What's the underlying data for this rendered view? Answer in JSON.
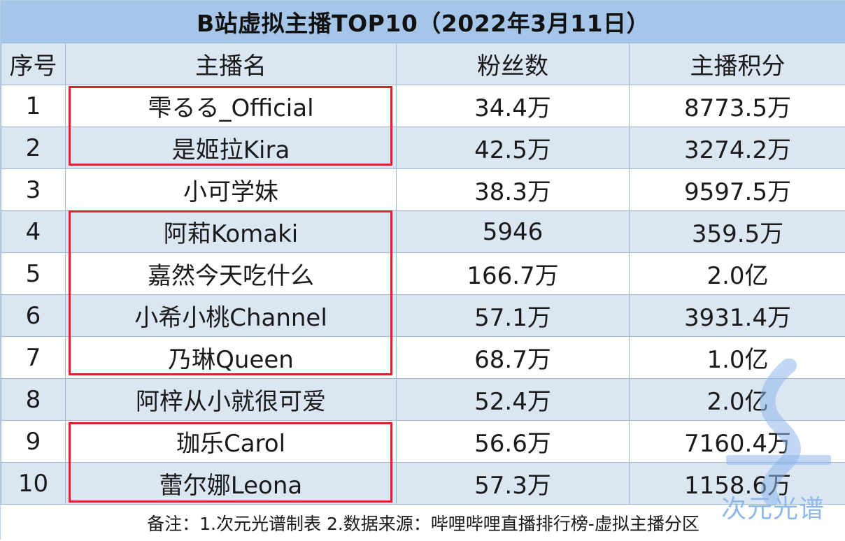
{
  "title": "B站虚拟主播TOP10（2022年3月11日）",
  "columns": [
    "序号",
    "主播名",
    "粉丝数",
    "主播积分"
  ],
  "rows": [
    {
      "rank": "1",
      "name": "雫るる_Official",
      "fans": "34.4万",
      "score": "8773.5万"
    },
    {
      "rank": "2",
      "name": "是姬拉Kira",
      "fans": "42.5万",
      "score": "3274.2万"
    },
    {
      "rank": "3",
      "name": "小可学妹",
      "fans": "38.3万",
      "score": "9597.5万"
    },
    {
      "rank": "4",
      "name": "阿萂Komaki",
      "fans": "5946",
      "score": "359.5万"
    },
    {
      "rank": "5",
      "name": "嘉然今天吃什么",
      "fans": "166.7万",
      "score": "2.0亿"
    },
    {
      "rank": "6",
      "name": "小希小桃Channel",
      "fans": "57.1万",
      "score": "3931.4万"
    },
    {
      "rank": "7",
      "name": "乃琳Queen",
      "fans": "68.7万",
      "score": "1.0亿"
    },
    {
      "rank": "8",
      "name": "阿梓从小就很可爱",
      "fans": "52.4万",
      "score": "2.0亿"
    },
    {
      "rank": "9",
      "name": "珈乐Carol",
      "fans": "56.6万",
      "score": "7160.4万"
    },
    {
      "rank": "10",
      "name": "蕾尔娜Leona",
      "fans": "57.3万",
      "score": "1158.6万"
    }
  ],
  "footer": "备注：1.次元光谱制表 2.数据来源：哔哩哔哩直播排行榜-虚拟主播分区",
  "watermark": "次元光谱",
  "colors": {
    "header_bg": "#a5c6e8",
    "stripe_bg": "#dbe6f3",
    "highlight_border": "#d9252b",
    "watermark": "#8eb7ea"
  }
}
